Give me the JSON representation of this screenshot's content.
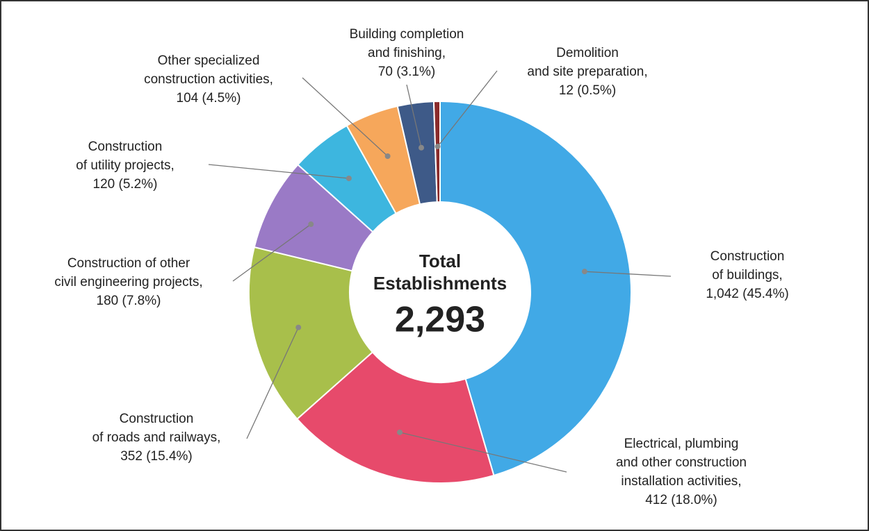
{
  "chart_data": {
    "type": "donut",
    "center_title": [
      "Total",
      "Establishments"
    ],
    "center_value": "2,293",
    "categories": [
      [
        "Construction",
        "of buildings,"
      ],
      [
        "Electrical, plumbing",
        "and other construction",
        "installation activities,"
      ],
      [
        "Construction",
        "of roads and railways,"
      ],
      [
        "Construction of other",
        "civil engineering projects,"
      ],
      [
        "Construction",
        "of utility projects,"
      ],
      [
        "Other specialized",
        "construction activities,"
      ],
      [
        "Building completion",
        "and finishing,"
      ],
      [
        "Demolition",
        "and site preparation,"
      ]
    ],
    "values": [
      1042,
      412,
      352,
      180,
      120,
      104,
      70,
      12
    ],
    "value_labels": [
      "1,042 (45.4%)",
      "412 (18.0%)",
      "352 (15.4%)",
      "180 (7.8%)",
      "120 (5.2%)",
      "104 (4.5%)",
      "70 (3.1%)",
      "12 (0.5%)"
    ],
    "colors": [
      "#41a9e6",
      "#e74a6b",
      "#a8bf4b",
      "#9a7ac6",
      "#3db6df",
      "#f6a75b",
      "#3e5a88",
      "#8a2b2b"
    ]
  }
}
